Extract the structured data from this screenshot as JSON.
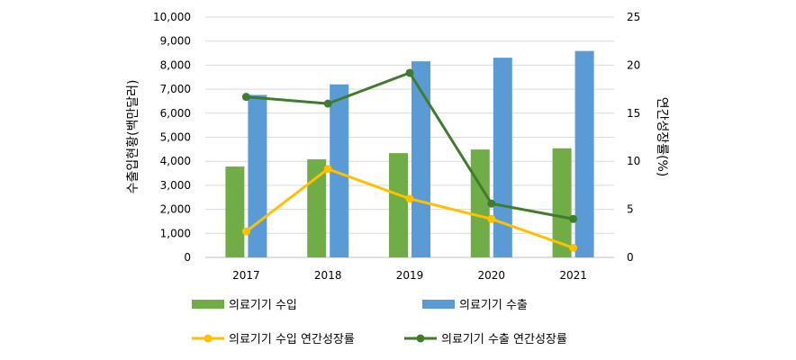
{
  "chart_data": {
    "type": "bar",
    "categories": [
      "2017",
      "2018",
      "2019",
      "2020",
      "2021"
    ],
    "series": [
      {
        "name": "의료기기 수입",
        "kind": "bar",
        "axis": "left",
        "color": "#70AD47",
        "values": [
          3780,
          4080,
          4340,
          4490,
          4540
        ]
      },
      {
        "name": "의료기기 수출",
        "kind": "bar",
        "axis": "left",
        "color": "#5B9BD5",
        "values": [
          6760,
          7200,
          8160,
          8310,
          8590
        ]
      },
      {
        "name": "의료기기 수입 연간성장률",
        "kind": "line",
        "axis": "right",
        "color": "#FFC000",
        "values": [
          2.7,
          9.2,
          6.1,
          4.0,
          1.0
        ]
      },
      {
        "name": "의료기기 수출 연간성장률",
        "kind": "line",
        "axis": "right",
        "color": "#3F7D2C",
        "values": [
          16.7,
          16.0,
          19.2,
          5.6,
          4.0
        ]
      }
    ],
    "ylabel": "수출입현황(백만달러)",
    "y2label": "연간성장률(%)",
    "ylim": [
      0,
      10000
    ],
    "y2lim": [
      0,
      25
    ],
    "yticks": [
      "0",
      "1,000",
      "2,000",
      "3,000",
      "4,000",
      "5,000",
      "6,000",
      "7,000",
      "8,000",
      "9,000",
      "10,000"
    ],
    "y2ticks": [
      "0",
      "5",
      "10",
      "15",
      "20",
      "25"
    ],
    "grid": true,
    "legend": "bottom"
  }
}
